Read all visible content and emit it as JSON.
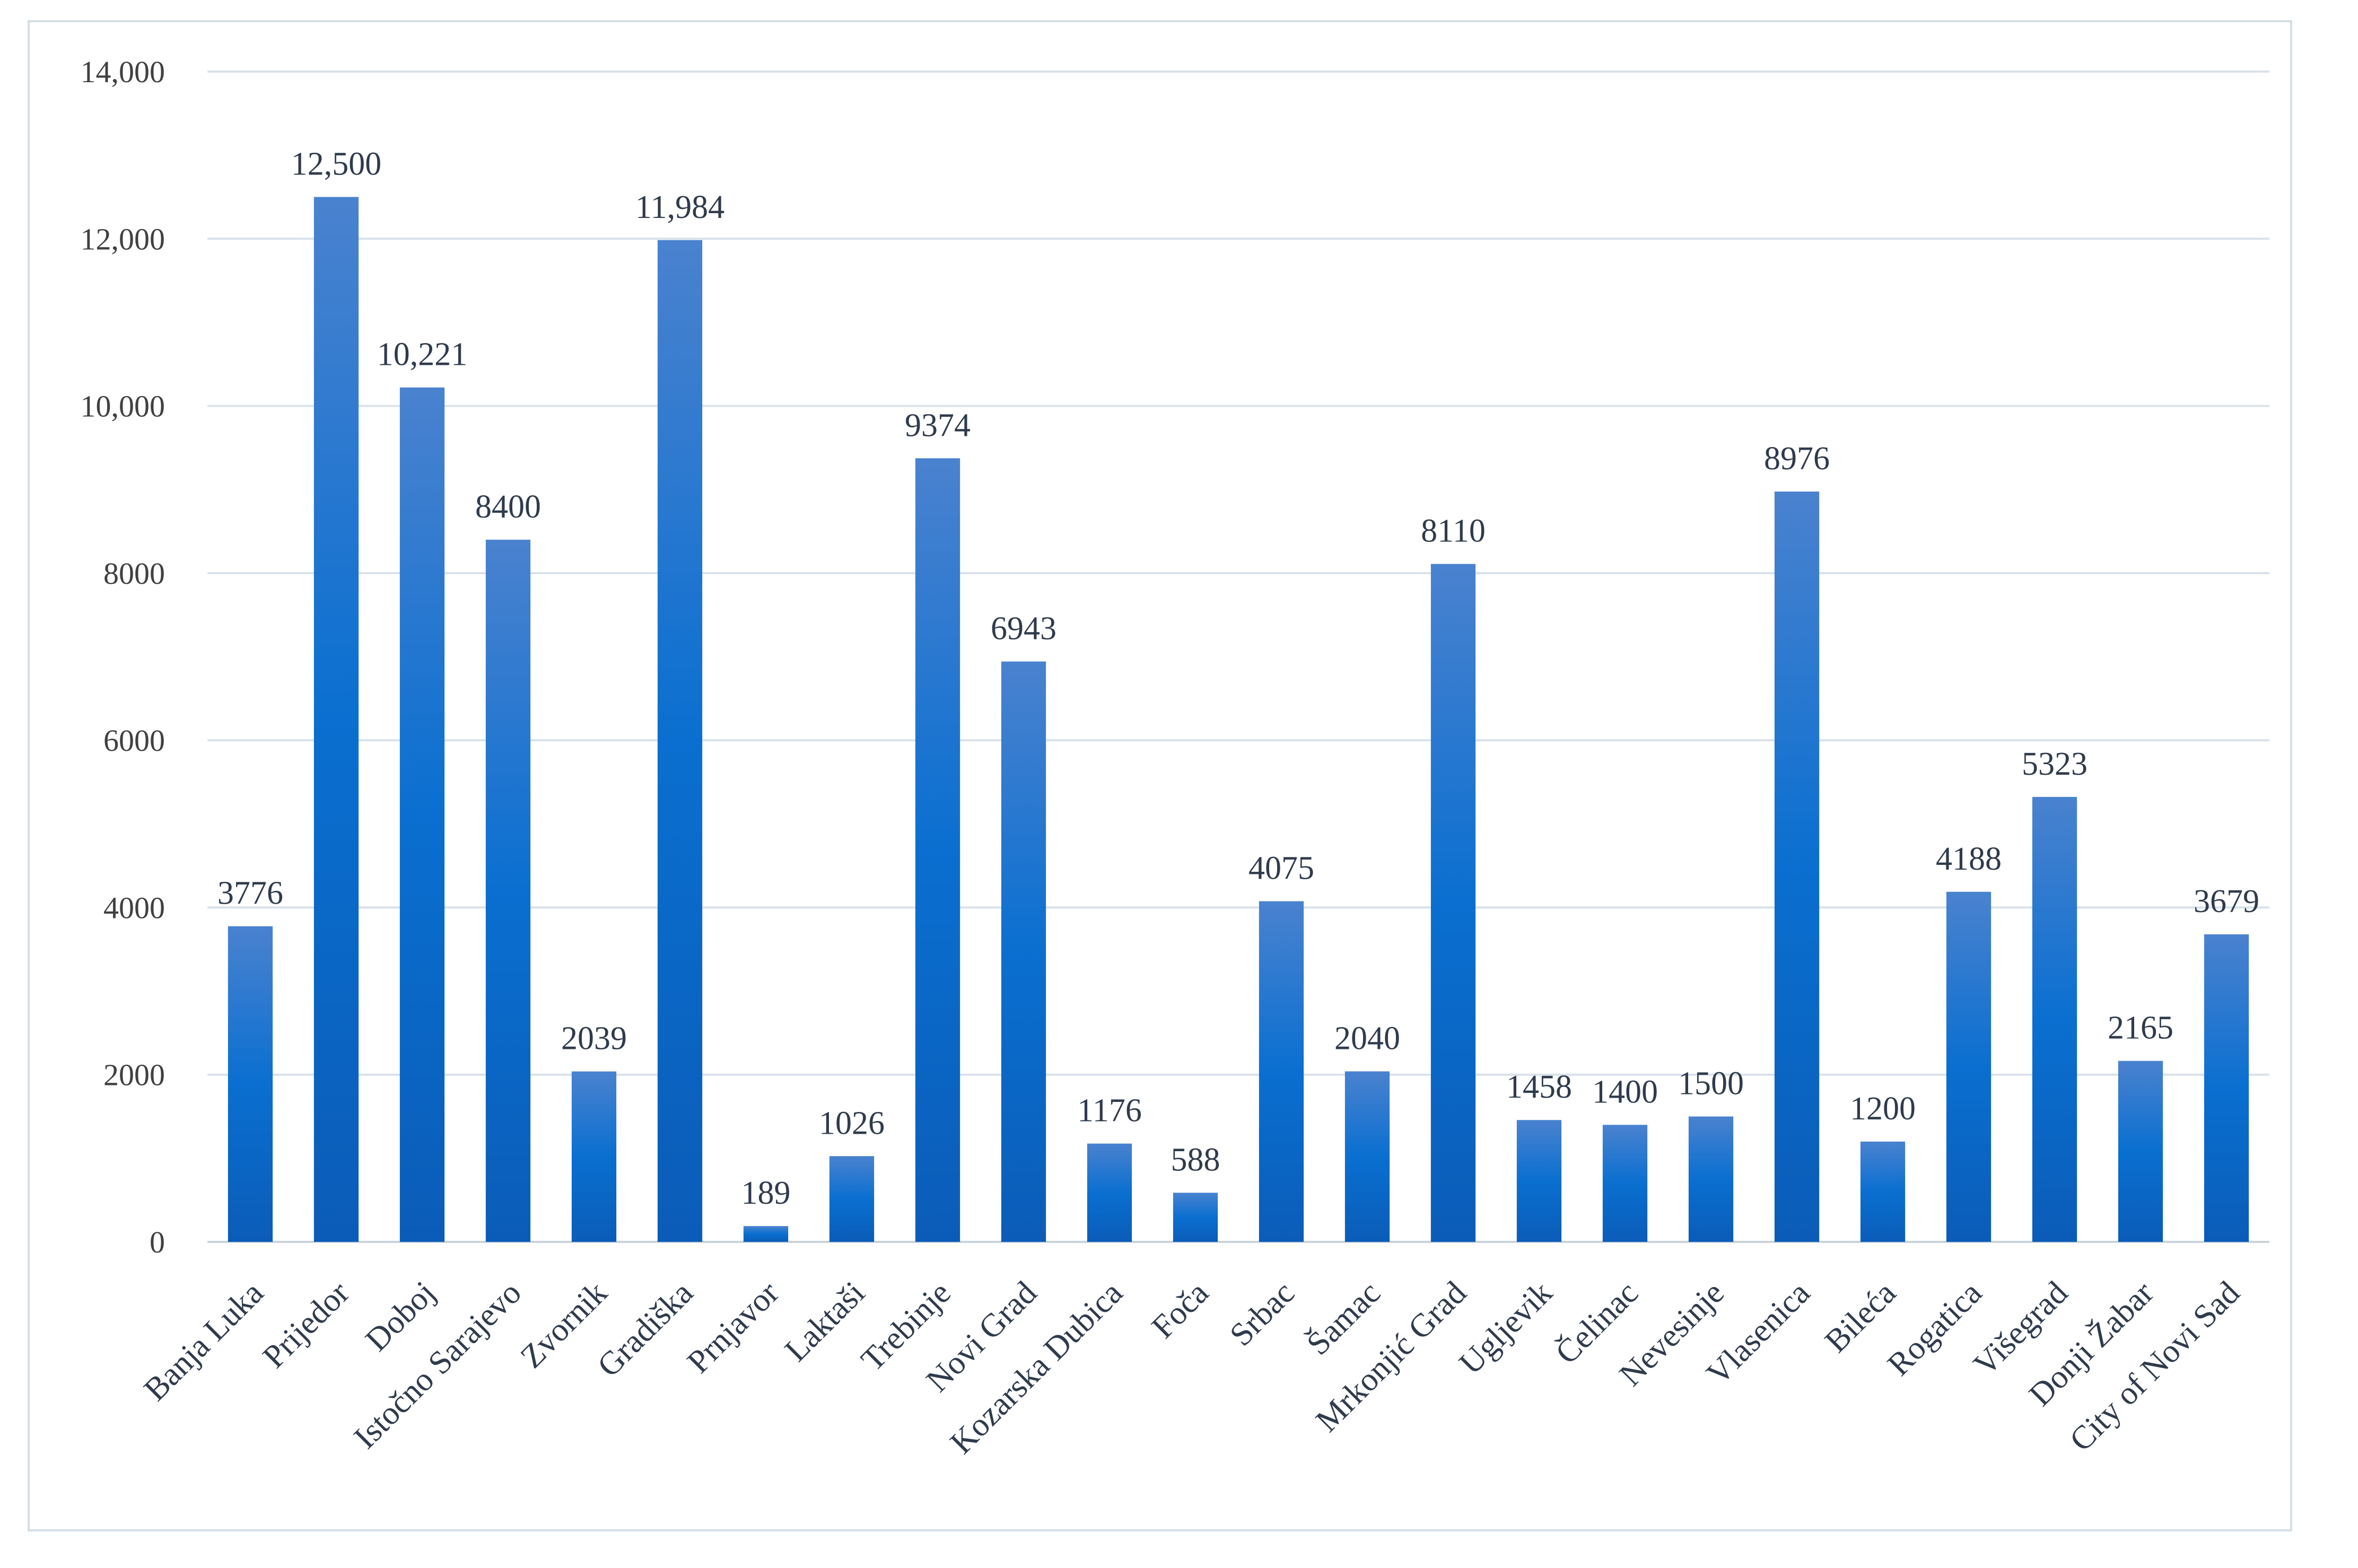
{
  "chart_data": {
    "type": "bar",
    "title": "",
    "xlabel": "",
    "ylabel": "",
    "ylim": [
      0,
      14000
    ],
    "grid": true,
    "yticks": [
      {
        "value": 0,
        "label": "0"
      },
      {
        "value": 2000,
        "label": "2000"
      },
      {
        "value": 4000,
        "label": "4000"
      },
      {
        "value": 6000,
        "label": "6000"
      },
      {
        "value": 8000,
        "label": "8000"
      },
      {
        "value": 10000,
        "label": "10,000"
      },
      {
        "value": 12000,
        "label": "12,000"
      },
      {
        "value": 14000,
        "label": "14,000"
      }
    ],
    "categories": [
      "Banja Luka",
      "Prijedor",
      "Doboj",
      "Istočno Sarajevo",
      "Zvornik",
      "Gradiška",
      "Prnjavor",
      "Laktaši",
      "Trebinje",
      "Novi Grad",
      "Kozarska Dubica",
      "Foča",
      "Srbac",
      "Šamac",
      "Mrkonjić Grad",
      "Ugljevik",
      "Čelinac",
      "Nevesinje",
      "Vlasenica",
      "Bileća",
      "Rogatica",
      "Višegrad",
      "Donji Žabar",
      "City of Novi Sad"
    ],
    "values": [
      3776,
      12500,
      10221,
      8400,
      2039,
      11984,
      189,
      1026,
      9374,
      6943,
      1176,
      588,
      4075,
      2040,
      8110,
      1458,
      1400,
      1500,
      8976,
      1200,
      4188,
      5323,
      2165,
      3679
    ],
    "value_labels": [
      "3776",
      "12,500",
      "10,221",
      "8400",
      "2039",
      "11,984",
      "189",
      "1026",
      "9374",
      "6943",
      "1176",
      "588",
      "4075",
      "2040",
      "8110",
      "1458",
      "1400",
      "1500",
      "8976",
      "1200",
      "4188",
      "5323",
      "2165",
      "3679"
    ],
    "colors": {
      "bar_top": "#4a82cf",
      "bar_mid": "#0a6fd0",
      "bar_bottom": "#0b5cb8",
      "grid": "#d9e2ea",
      "axis": "#c9d3dc"
    }
  }
}
